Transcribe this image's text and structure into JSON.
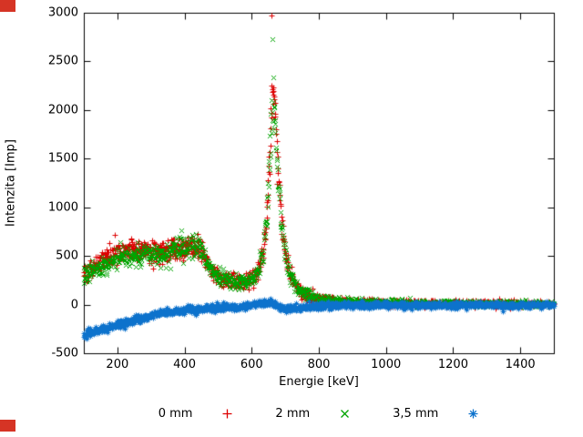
{
  "ui": {
    "background_color": "#ffffff",
    "corner_marker_color": "#d63425"
  },
  "chart_data": {
    "type": "scatter",
    "title": "",
    "xlabel": "Energie [keV]",
    "ylabel": "Intenzita [Imp]",
    "xlim": [
      100,
      1500
    ],
    "ylim": [
      -500,
      3000
    ],
    "xticks": [
      200,
      400,
      600,
      800,
      1000,
      1200,
      1400
    ],
    "yticks": [
      -500,
      0,
      500,
      1000,
      1500,
      2000,
      2500,
      3000
    ],
    "grid": false,
    "legend_position": "bottom-center",
    "sample_step_keV": 1.0,
    "series": [
      {
        "name": "0 mm",
        "marker": "plus",
        "color": "#dd0000",
        "seed": 101,
        "noise_base": 8,
        "noise_scale": 2.1,
        "anchors": [
          [
            100,
            320
          ],
          [
            125,
            380
          ],
          [
            150,
            440
          ],
          [
            175,
            500
          ],
          [
            200,
            550
          ],
          [
            225,
            575
          ],
          [
            250,
            565
          ],
          [
            275,
            545
          ],
          [
            300,
            535
          ],
          [
            330,
            545
          ],
          [
            360,
            565
          ],
          [
            390,
            595
          ],
          [
            410,
            610
          ],
          [
            430,
            620
          ],
          [
            445,
            590
          ],
          [
            460,
            480
          ],
          [
            475,
            380
          ],
          [
            490,
            320
          ],
          [
            510,
            280
          ],
          [
            530,
            260
          ],
          [
            550,
            248
          ],
          [
            570,
            250
          ],
          [
            590,
            262
          ],
          [
            605,
            290
          ],
          [
            620,
            370
          ],
          [
            632,
            520
          ],
          [
            642,
            820
          ],
          [
            650,
            1300
          ],
          [
            657,
            1850
          ],
          [
            662,
            2120
          ],
          [
            667,
            2030
          ],
          [
            673,
            1700
          ],
          [
            680,
            1280
          ],
          [
            688,
            900
          ],
          [
            696,
            620
          ],
          [
            705,
            430
          ],
          [
            715,
            310
          ],
          [
            728,
            210
          ],
          [
            745,
            140
          ],
          [
            765,
            100
          ],
          [
            790,
            70
          ],
          [
            820,
            52
          ],
          [
            860,
            40
          ],
          [
            900,
            32
          ],
          [
            950,
            26
          ],
          [
            1000,
            22
          ],
          [
            1080,
            17
          ],
          [
            1160,
            14
          ],
          [
            1250,
            12
          ],
          [
            1350,
            9
          ],
          [
            1500,
            7
          ]
        ],
        "outliers": [
          [
            660,
            2970
          ],
          [
            658,
            2250
          ],
          [
            664,
            2230
          ]
        ]
      },
      {
        "name": "2 mm",
        "marker": "cross",
        "color": "#00a400",
        "seed": 202,
        "noise_base": 8,
        "noise_scale": 2.1,
        "anchors": [
          [
            100,
            295
          ],
          [
            125,
            345
          ],
          [
            150,
            395
          ],
          [
            175,
            440
          ],
          [
            200,
            475
          ],
          [
            225,
            495
          ],
          [
            250,
            495
          ],
          [
            275,
            495
          ],
          [
            300,
            500
          ],
          [
            330,
            520
          ],
          [
            360,
            550
          ],
          [
            390,
            585
          ],
          [
            410,
            600
          ],
          [
            430,
            612
          ],
          [
            445,
            585
          ],
          [
            460,
            475
          ],
          [
            475,
            375
          ],
          [
            490,
            315
          ],
          [
            510,
            275
          ],
          [
            530,
            255
          ],
          [
            550,
            243
          ],
          [
            570,
            245
          ],
          [
            590,
            257
          ],
          [
            605,
            285
          ],
          [
            620,
            362
          ],
          [
            632,
            505
          ],
          [
            642,
            790
          ],
          [
            650,
            1260
          ],
          [
            657,
            1790
          ],
          [
            662,
            2040
          ],
          [
            667,
            1960
          ],
          [
            673,
            1650
          ],
          [
            680,
            1240
          ],
          [
            688,
            870
          ],
          [
            696,
            600
          ],
          [
            705,
            415
          ],
          [
            715,
            300
          ],
          [
            728,
            205
          ],
          [
            745,
            135
          ],
          [
            765,
            95
          ],
          [
            790,
            67
          ],
          [
            820,
            50
          ],
          [
            860,
            38
          ],
          [
            900,
            30
          ],
          [
            950,
            24
          ],
          [
            1000,
            20
          ],
          [
            1080,
            16
          ],
          [
            1160,
            13
          ],
          [
            1250,
            11
          ],
          [
            1350,
            8
          ],
          [
            1500,
            6
          ]
        ],
        "outliers": [
          [
            662,
            2730
          ]
        ]
      },
      {
        "name": "3,5 mm",
        "marker": "asterisk",
        "color": "#0d72cc",
        "seed": 303,
        "noise_base": 15,
        "noise_scale": 0.35,
        "anchors": [
          [
            100,
            -300
          ],
          [
            130,
            -278
          ],
          [
            160,
            -248
          ],
          [
            190,
            -215
          ],
          [
            220,
            -184
          ],
          [
            250,
            -155
          ],
          [
            280,
            -127
          ],
          [
            310,
            -102
          ],
          [
            340,
            -82
          ],
          [
            370,
            -65
          ],
          [
            400,
            -52
          ],
          [
            440,
            -42
          ],
          [
            480,
            -34
          ],
          [
            520,
            -29
          ],
          [
            560,
            -23
          ],
          [
            600,
            -8
          ],
          [
            620,
            8
          ],
          [
            640,
            22
          ],
          [
            658,
            28
          ],
          [
            670,
            5
          ],
          [
            685,
            -35
          ],
          [
            705,
            -48
          ],
          [
            730,
            -38
          ],
          [
            760,
            -24
          ],
          [
            800,
            -12
          ],
          [
            850,
            -7
          ],
          [
            900,
            -5
          ],
          [
            1000,
            -4
          ],
          [
            1200,
            -3
          ],
          [
            1500,
            -3
          ]
        ],
        "outliers": []
      }
    ]
  }
}
